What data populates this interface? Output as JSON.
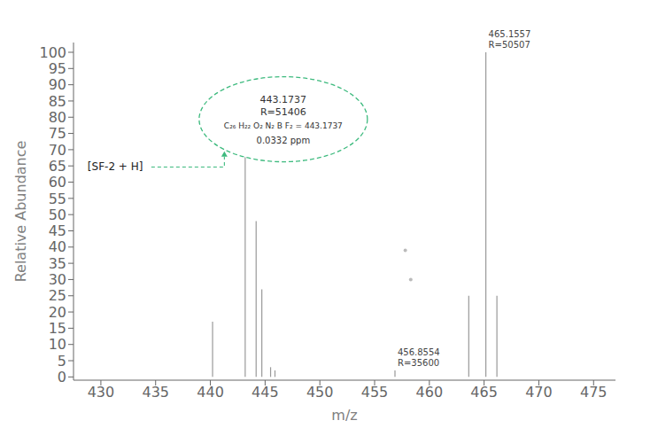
{
  "chart_data": {
    "type": "stem",
    "xlabel": "m/z",
    "ylabel": "Relative Abundance",
    "x": [
      440.2,
      443.18,
      444.18,
      444.7,
      445.5,
      445.9,
      456.86,
      463.6,
      465.16,
      466.17
    ],
    "values": [
      17,
      69,
      48,
      27,
      3,
      2,
      2,
      25,
      100,
      25
    ],
    "color": "#999999",
    "xlim": [
      427.5,
      477
    ],
    "ylim": [
      -1,
      103
    ],
    "xticks": [
      430,
      435,
      440,
      445,
      450,
      455,
      460,
      465,
      470,
      475
    ],
    "yticks": [
      0,
      5,
      10,
      15,
      20,
      25,
      30,
      35,
      40,
      45,
      50,
      55,
      60,
      65,
      70,
      75,
      80,
      85,
      90,
      95,
      100
    ],
    "grid": false,
    "points": {
      "x": [
        457.8,
        458.3
      ],
      "values": [
        39,
        30
      ],
      "color": "#bbbbbb"
    },
    "annotations": [
      {
        "x": 465.16,
        "text": [
          "465.1557",
          "R=50507"
        ]
      },
      {
        "x": 456.86,
        "text": [
          "456.8554",
          "R=35600"
        ]
      },
      {
        "x": 443.18,
        "text": [
          "443.1737",
          "R=51406",
          "C₂₆ H₂₂ O₂ N₂ B F₂ = 443.1737",
          "0.0332 ppm"
        ],
        "color": "#3dba7e",
        "label": "[SF-2 + H]"
      }
    ]
  }
}
